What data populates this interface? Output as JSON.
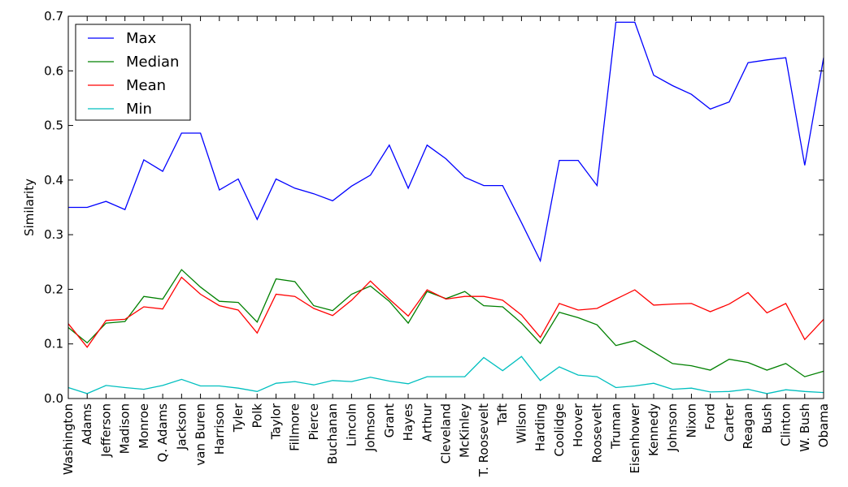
{
  "chart_data": {
    "type": "line",
    "title": "",
    "xlabel": "",
    "ylabel": "Similarity",
    "ylim": [
      0,
      0.7
    ],
    "yticks": [
      "0.0",
      "0.1",
      "0.2",
      "0.3",
      "0.4",
      "0.5",
      "0.6",
      "0.7"
    ],
    "grid": false,
    "legend_position": "top-left",
    "categories": [
      "Washington",
      "Adams",
      "Jefferson",
      "Madison",
      "Monroe",
      "Q. Adams",
      "Jackson",
      "van Buren",
      "Harrison",
      "Tyler",
      "Polk",
      "Taylor",
      "Fillmore",
      "Pierce",
      "Buchanan",
      "Lincoln",
      "Johnson",
      "Grant",
      "Hayes",
      "Arthur",
      "Cleveland",
      "McKinley",
      "T. Roosevelt",
      "Taft",
      "Wilson",
      "Harding",
      "Coolidge",
      "Hoover",
      "Roosevelt",
      "Truman",
      "Eisenhower",
      "Kennedy",
      "Johnson",
      "Nixon",
      "Ford",
      "Carter",
      "Reagan",
      "Bush",
      "Clinton",
      "W. Bush",
      "Obama"
    ],
    "series": [
      {
        "name": "Max",
        "color": "#0000ff",
        "values": [
          0.35,
          0.35,
          0.361,
          0.346,
          0.437,
          0.416,
          0.486,
          0.486,
          0.382,
          0.402,
          0.328,
          0.402,
          0.385,
          0.375,
          0.362,
          0.389,
          0.409,
          0.464,
          0.385,
          0.464,
          0.439,
          0.405,
          0.39,
          0.39,
          0.322,
          0.252,
          0.436,
          0.436,
          0.39,
          0.689,
          0.689,
          0.592,
          0.573,
          0.557,
          0.53,
          0.543,
          0.615,
          0.62,
          0.624,
          0.427,
          0.624
        ]
      },
      {
        "name": "Median",
        "color": "#008000",
        "values": [
          0.13,
          0.102,
          0.138,
          0.141,
          0.187,
          0.182,
          0.236,
          0.204,
          0.178,
          0.176,
          0.14,
          0.219,
          0.214,
          0.17,
          0.161,
          0.191,
          0.206,
          0.178,
          0.138,
          0.196,
          0.183,
          0.196,
          0.17,
          0.168,
          0.138,
          0.101,
          0.158,
          0.148,
          0.135,
          0.097,
          0.106,
          0.085,
          0.064,
          0.06,
          0.052,
          0.072,
          0.066,
          0.052,
          0.064,
          0.04,
          0.05
        ]
      },
      {
        "name": "Mean",
        "color": "#ff0000",
        "values": [
          0.137,
          0.094,
          0.143,
          0.145,
          0.168,
          0.164,
          0.222,
          0.191,
          0.17,
          0.162,
          0.12,
          0.191,
          0.187,
          0.165,
          0.152,
          0.18,
          0.215,
          0.182,
          0.151,
          0.199,
          0.182,
          0.187,
          0.187,
          0.18,
          0.153,
          0.112,
          0.174,
          0.162,
          0.165,
          0.182,
          0.199,
          0.171,
          0.173,
          0.174,
          0.159,
          0.173,
          0.194,
          0.157,
          0.174,
          0.108,
          0.145
        ]
      },
      {
        "name": "Min",
        "color": "#00bfbf",
        "values": [
          0.02,
          0.009,
          0.024,
          0.02,
          0.017,
          0.024,
          0.035,
          0.023,
          0.023,
          0.019,
          0.013,
          0.028,
          0.031,
          0.025,
          0.033,
          0.031,
          0.039,
          0.032,
          0.027,
          0.04,
          0.04,
          0.04,
          0.075,
          0.051,
          0.077,
          0.033,
          0.058,
          0.043,
          0.04,
          0.02,
          0.023,
          0.028,
          0.017,
          0.019,
          0.012,
          0.013,
          0.017,
          0.009,
          0.016,
          0.013,
          0.011
        ]
      }
    ]
  }
}
